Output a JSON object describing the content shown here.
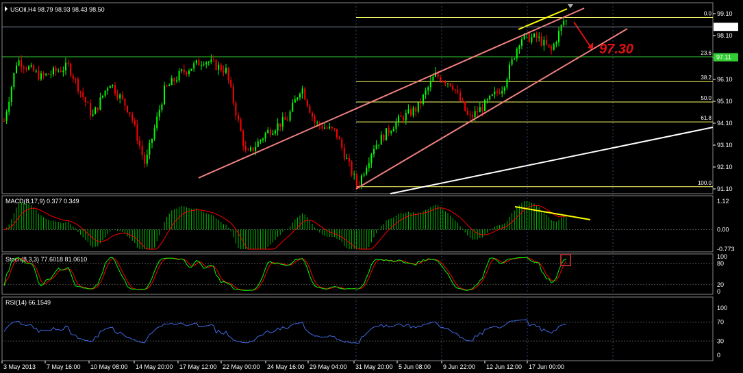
{
  "chart_data": {
    "type": "candlestick",
    "symbol_header": "USOil,H4  98.79 98.93 98.43 98.50",
    "current_price_label": "98.50",
    "marked_price_label": "97.11",
    "target_annotation": "97.30",
    "price_axis": {
      "ylim": [
        91.1,
        99.1
      ],
      "ticks": [
        "99.10",
        "98.10",
        "97.10",
        "96.10",
        "95.10",
        "94.10",
        "93.10",
        "92.10",
        "91.10"
      ]
    },
    "fibonacci_levels": [
      {
        "label": "0.0",
        "price": 98.93
      },
      {
        "label": "23.6",
        "price": 97.13
      },
      {
        "label": "38.2",
        "price": 96.0
      },
      {
        "label": "50.0",
        "price": 95.07
      },
      {
        "label": "61.8",
        "price": 94.16
      },
      {
        "label": "100.0",
        "price": 91.2
      }
    ],
    "x_axis_labels": [
      "3 May 2013",
      "7 May 16:00",
      "10 May 08:00",
      "14 May 20:00",
      "17 May 12:00",
      "22 May 00:00",
      "24 May 16:00",
      "29 May 04:00",
      "31 May 20:00",
      "5 Jun 08:00",
      "9 Jun 22:00",
      "12 Jun 12:00",
      "17 Jun 00:00"
    ],
    "macd": {
      "header": "MACD(8,17,9) 0.377 0.349",
      "ticks": [
        "1.12",
        "0.00",
        "-0.773"
      ],
      "ylim": [
        -0.773,
        1.12
      ]
    },
    "stoch": {
      "header": "Stoch(8,3,3) 77.6018 81.0610",
      "ticks": [
        "100",
        "80",
        "20",
        "0"
      ],
      "ylim": [
        0,
        100
      ]
    },
    "rsi": {
      "header": "RSI(14) 66.1549",
      "ticks": [
        "100",
        "70",
        "30",
        "0"
      ],
      "ylim": [
        0,
        100
      ]
    },
    "colors": {
      "background": "#000000",
      "bull": "#00ff00",
      "bear": "#ff0000",
      "grid": "#2e4a6e",
      "channel": "#f08080",
      "trend": "#ffffff",
      "divergence": "#ffff00",
      "fib": "#ffff66",
      "macd_hist": "#00c000",
      "macd_signal": "#ff0000",
      "stoch_main": "#00ff00",
      "stoch_signal": "#ff0000",
      "rsi": "#4169e1",
      "annotation": "#e01010"
    }
  }
}
